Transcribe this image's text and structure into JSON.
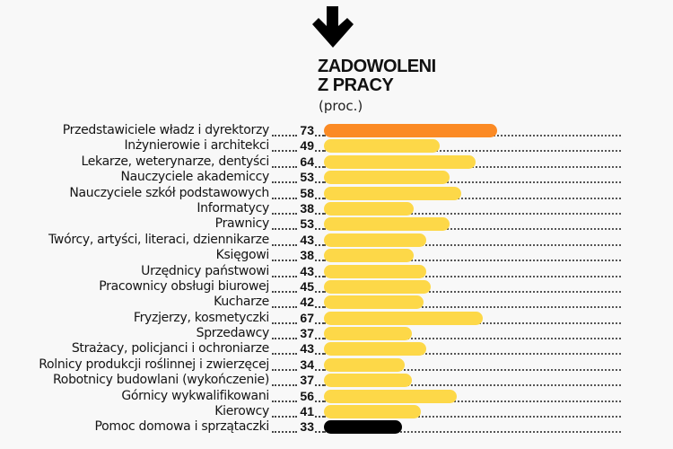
{
  "header": {
    "arrow_icon": "arrow-down-icon",
    "title_line1": "ZADOWOLENI",
    "title_line2": "Z PRACY",
    "unit": "(proc.)"
  },
  "colors": {
    "background": "#f8f8f8",
    "highlight_top": "#fb8a24",
    "default_bar": "#fdd848",
    "highlight_bottom": "#000000"
  },
  "chart_data": {
    "type": "bar",
    "orientation": "horizontal",
    "title": "ZADOWOLENI Z PRACY",
    "subtitle": "(proc.)",
    "xlabel": "",
    "ylabel": "",
    "xlim": [
      0,
      100
    ],
    "grid": false,
    "legend": null,
    "categories": [
      "Przedstawiciele władz i dyrektorzy",
      "Inżynierowie i architekci",
      "Lekarze, weterynarze, dentyści",
      "Nauczyciele akademiccy",
      "Nauczyciele szkół podstawowych",
      "Informatycy",
      "Prawnicy",
      "Twórcy, artyści, literaci, dziennikarze",
      "Księgowi",
      "Urzędnicy państwowi",
      "Pracownicy obsługi biurowej",
      "Kucharze",
      "Fryzjerzy, kosmetyczki",
      "Sprzedawcy",
      "Strażacy, policjanci i ochroniarze",
      "Rolnicy produkcji roślinnej i zwierzęcej",
      "Robotnicy budowlani (wykończenie)",
      "Górnicy wykwalifikowani",
      "Kierowcy",
      "Pomoc domowa i sprzątaczki"
    ],
    "values": [
      73,
      49,
      64,
      53,
      58,
      38,
      53,
      43,
      38,
      43,
      45,
      42,
      67,
      37,
      43,
      34,
      37,
      56,
      41,
      33
    ],
    "bar_colors": [
      "#fb8a24",
      "#fdd848",
      "#fdd848",
      "#fdd848",
      "#fdd848",
      "#fdd848",
      "#fdd848",
      "#fdd848",
      "#fdd848",
      "#fdd848",
      "#fdd848",
      "#fdd848",
      "#fdd848",
      "#fdd848",
      "#fdd848",
      "#fdd848",
      "#fdd848",
      "#fdd848",
      "#fdd848",
      "#000000"
    ]
  }
}
